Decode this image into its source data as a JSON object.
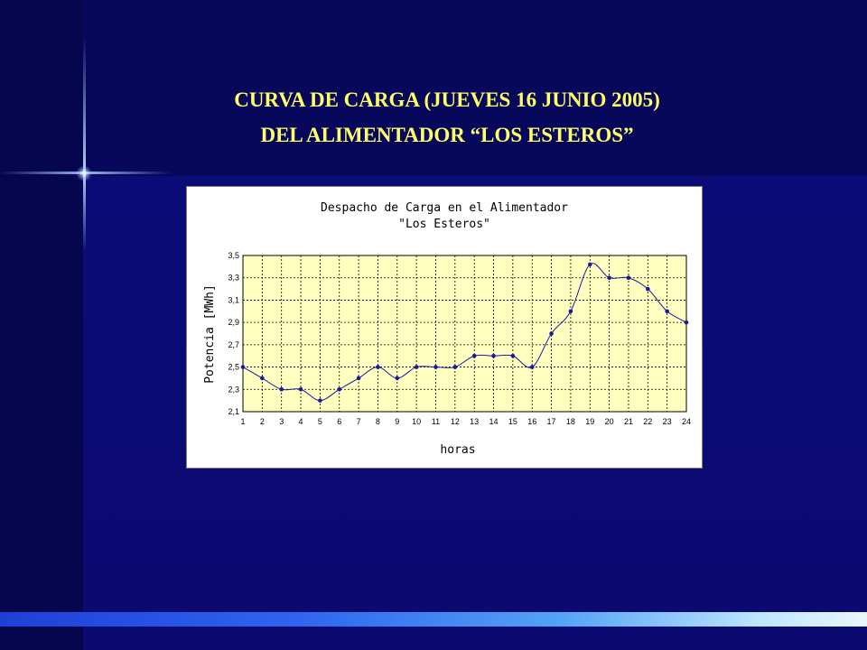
{
  "slide": {
    "title_line1": "CURVA DE CARGA (JUEVES 16 JUNIO 2005)",
    "title_line2": "DEL ALIMENTADOR “LOS ESTEROS”"
  },
  "colors": {
    "title": "#ffff66",
    "plot_background": "#ffffc0",
    "series_line": "#1a1aa0"
  },
  "chart_data": {
    "type": "line",
    "title_lines": [
      "Despacho de Carga en el Alimentador",
      "\"Los Esteros\""
    ],
    "xlabel": "horas",
    "ylabel": "Potencia [MWh]",
    "categories": [
      "1",
      "2",
      "3",
      "4",
      "5",
      "6",
      "7",
      "8",
      "9",
      "10",
      "11",
      "12",
      "13",
      "14",
      "15",
      "16",
      "17",
      "18",
      "19",
      "20",
      "21",
      "22",
      "23",
      "24"
    ],
    "y_ticks": [
      "2,1",
      "2,3",
      "2,5",
      "2,7",
      "2,9",
      "3,1",
      "3,3",
      "3,5"
    ],
    "ylim": [
      2.1,
      3.5
    ],
    "grid": true,
    "series": [
      {
        "values": [
          2.5,
          2.4,
          2.3,
          2.3,
          2.2,
          2.3,
          2.4,
          2.5,
          2.4,
          2.5,
          2.5,
          2.5,
          2.6,
          2.6,
          2.6,
          2.5,
          2.8,
          3.0,
          3.42,
          3.3,
          3.3,
          3.2,
          3.0,
          2.9
        ]
      }
    ]
  }
}
